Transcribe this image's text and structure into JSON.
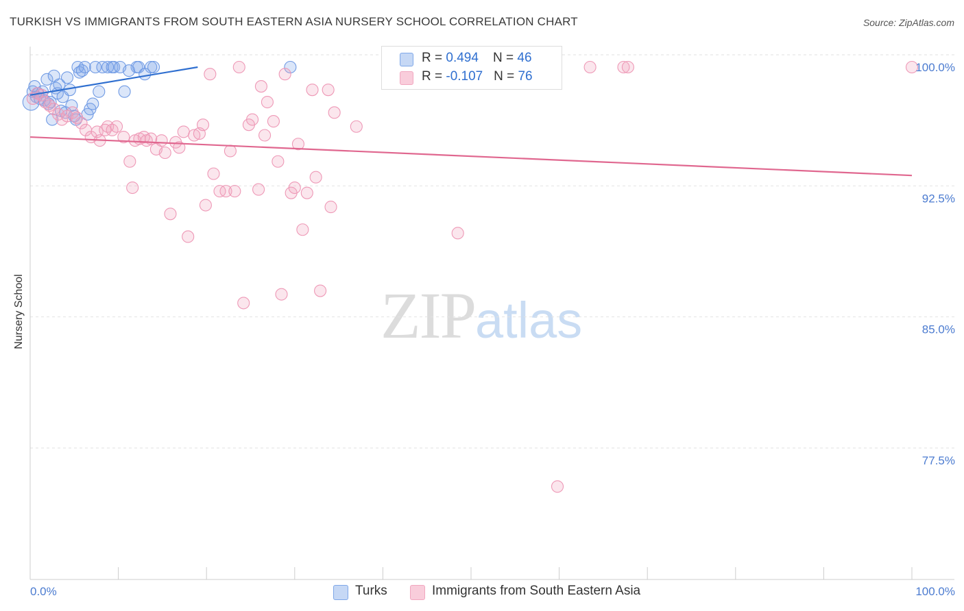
{
  "header": {
    "title": "TURKISH VS IMMIGRANTS FROM SOUTH EASTERN ASIA NURSERY SCHOOL CORRELATION CHART",
    "source": "Source: ZipAtlas.com"
  },
  "watermark": {
    "zip": "ZIP",
    "atlas": "atlas"
  },
  "legend": {
    "turks": {
      "r_label": "R = ",
      "r_value": "0.494",
      "n_label": "N = ",
      "n_value": "46",
      "color": "#7ea7e8"
    },
    "immigrants": {
      "r_label": "R = ",
      "r_value": "-0.107",
      "n_label": "N = ",
      "n_value": "76",
      "color": "#f1a6bf"
    }
  },
  "bottom_legend": {
    "turks_label": "Turks",
    "immigrants_label": "Immigrants from South Eastern Asia"
  },
  "chart_data": {
    "type": "scatter",
    "title": "TURKISH VS IMMIGRANTS FROM SOUTH EASTERN ASIA NURSERY SCHOOL CORRELATION CHART",
    "xlabel": "",
    "ylabel": "Nursery School",
    "xlim": [
      0,
      100
    ],
    "ylim": [
      71.3,
      101.7
    ],
    "x_tick_labels": [
      "0.0%",
      "100.0%"
    ],
    "y_ticks": [
      77.5,
      85.0,
      92.5,
      100.0
    ],
    "y_tick_labels": [
      "77.5%",
      "85.0%",
      "92.5%",
      "100.0%"
    ],
    "grid": true,
    "legend_position": "top-center",
    "series": [
      {
        "name": "Turks",
        "color": "#7ea7e8",
        "trend": {
          "x": [
            0.0,
            19.0
          ],
          "y": [
            98.4,
            100.0
          ],
          "color": "#2f6fd0"
        },
        "points": [
          [
            0.1,
            98.0
          ],
          [
            0.3,
            98.6
          ],
          [
            0.5,
            98.9
          ],
          [
            0.7,
            98.3
          ],
          [
            0.9,
            98.5
          ],
          [
            1.1,
            98.2
          ],
          [
            1.4,
            98.6
          ],
          [
            1.6,
            98.1
          ],
          [
            1.9,
            99.3
          ],
          [
            2.1,
            97.9
          ],
          [
            2.3,
            98.0
          ],
          [
            2.5,
            97.0
          ],
          [
            2.7,
            99.5
          ],
          [
            2.9,
            98.8
          ],
          [
            3.1,
            98.5
          ],
          [
            3.3,
            99.0
          ],
          [
            3.5,
            97.5
          ],
          [
            3.7,
            98.3
          ],
          [
            4.0,
            97.4
          ],
          [
            4.2,
            99.4
          ],
          [
            4.5,
            98.7
          ],
          [
            4.7,
            97.8
          ],
          [
            5.0,
            97.2
          ],
          [
            5.2,
            97.0
          ],
          [
            5.4,
            100.0
          ],
          [
            5.6,
            99.7
          ],
          [
            5.9,
            99.8
          ],
          [
            6.2,
            100.0
          ],
          [
            6.5,
            97.3
          ],
          [
            6.8,
            97.6
          ],
          [
            7.1,
            97.9
          ],
          [
            7.4,
            100.0
          ],
          [
            7.8,
            98.6
          ],
          [
            8.2,
            100.0
          ],
          [
            8.8,
            100.0
          ],
          [
            9.3,
            100.0
          ],
          [
            9.5,
            100.0
          ],
          [
            10.2,
            100.0
          ],
          [
            10.7,
            98.6
          ],
          [
            11.2,
            99.8
          ],
          [
            12.1,
            100.0
          ],
          [
            12.3,
            100.0
          ],
          [
            13.0,
            99.6
          ],
          [
            13.7,
            100.0
          ],
          [
            14.0,
            100.0
          ],
          [
            29.5,
            100.0
          ]
        ]
      },
      {
        "name": "Immigrants from South Eastern Asia",
        "color": "#f1a6bf",
        "trend": {
          "x": [
            0.0,
            100.0
          ],
          "y": [
            96.0,
            93.8
          ],
          "color": "#e0678f"
        },
        "points": [
          [
            0.3,
            98.2
          ],
          [
            0.8,
            98.5
          ],
          [
            1.3,
            98.4
          ],
          [
            1.7,
            98.0
          ],
          [
            2.2,
            97.8
          ],
          [
            2.7,
            97.6
          ],
          [
            3.2,
            97.3
          ],
          [
            3.6,
            97.0
          ],
          [
            4.2,
            97.2
          ],
          [
            4.8,
            97.4
          ],
          [
            5.3,
            97.1
          ],
          [
            5.8,
            96.8
          ],
          [
            6.3,
            96.4
          ],
          [
            6.9,
            96.0
          ],
          [
            7.6,
            96.3
          ],
          [
            7.9,
            95.8
          ],
          [
            8.5,
            96.4
          ],
          [
            8.8,
            96.6
          ],
          [
            9.3,
            96.4
          ],
          [
            9.8,
            96.6
          ],
          [
            10.6,
            96.0
          ],
          [
            11.3,
            94.6
          ],
          [
            11.6,
            93.1
          ],
          [
            11.9,
            95.8
          ],
          [
            12.4,
            95.9
          ],
          [
            12.9,
            96.0
          ],
          [
            13.2,
            95.8
          ],
          [
            13.7,
            95.9
          ],
          [
            14.3,
            95.3
          ],
          [
            14.9,
            95.8
          ],
          [
            15.3,
            95.1
          ],
          [
            15.9,
            91.6
          ],
          [
            16.5,
            95.7
          ],
          [
            16.9,
            95.4
          ],
          [
            17.4,
            96.3
          ],
          [
            17.9,
            90.3
          ],
          [
            18.6,
            96.1
          ],
          [
            19.2,
            96.2
          ],
          [
            19.6,
            96.7
          ],
          [
            19.9,
            92.1
          ],
          [
            20.4,
            99.6
          ],
          [
            20.8,
            93.9
          ],
          [
            21.5,
            92.9
          ],
          [
            22.2,
            92.9
          ],
          [
            22.7,
            95.2
          ],
          [
            23.2,
            92.9
          ],
          [
            23.7,
            100.0
          ],
          [
            24.2,
            86.5
          ],
          [
            24.8,
            96.7
          ],
          [
            25.2,
            97.0
          ],
          [
            25.9,
            93.0
          ],
          [
            26.2,
            98.9
          ],
          [
            26.6,
            96.1
          ],
          [
            26.9,
            98.0
          ],
          [
            27.6,
            96.9
          ],
          [
            28.1,
            94.6
          ],
          [
            28.5,
            87.0
          ],
          [
            28.9,
            99.6
          ],
          [
            29.6,
            92.8
          ],
          [
            30.0,
            93.1
          ],
          [
            30.4,
            95.6
          ],
          [
            30.9,
            90.7
          ],
          [
            31.4,
            92.8
          ],
          [
            32.0,
            98.7
          ],
          [
            32.4,
            93.7
          ],
          [
            32.9,
            87.2
          ],
          [
            33.8,
            98.7
          ],
          [
            34.1,
            92.0
          ],
          [
            34.5,
            97.4
          ],
          [
            37.0,
            96.6
          ],
          [
            48.5,
            90.5
          ],
          [
            59.8,
            76.0
          ],
          [
            63.5,
            100.0
          ],
          [
            67.3,
            100.0
          ],
          [
            67.8,
            100.0
          ],
          [
            100.0,
            100.0
          ]
        ]
      }
    ]
  }
}
